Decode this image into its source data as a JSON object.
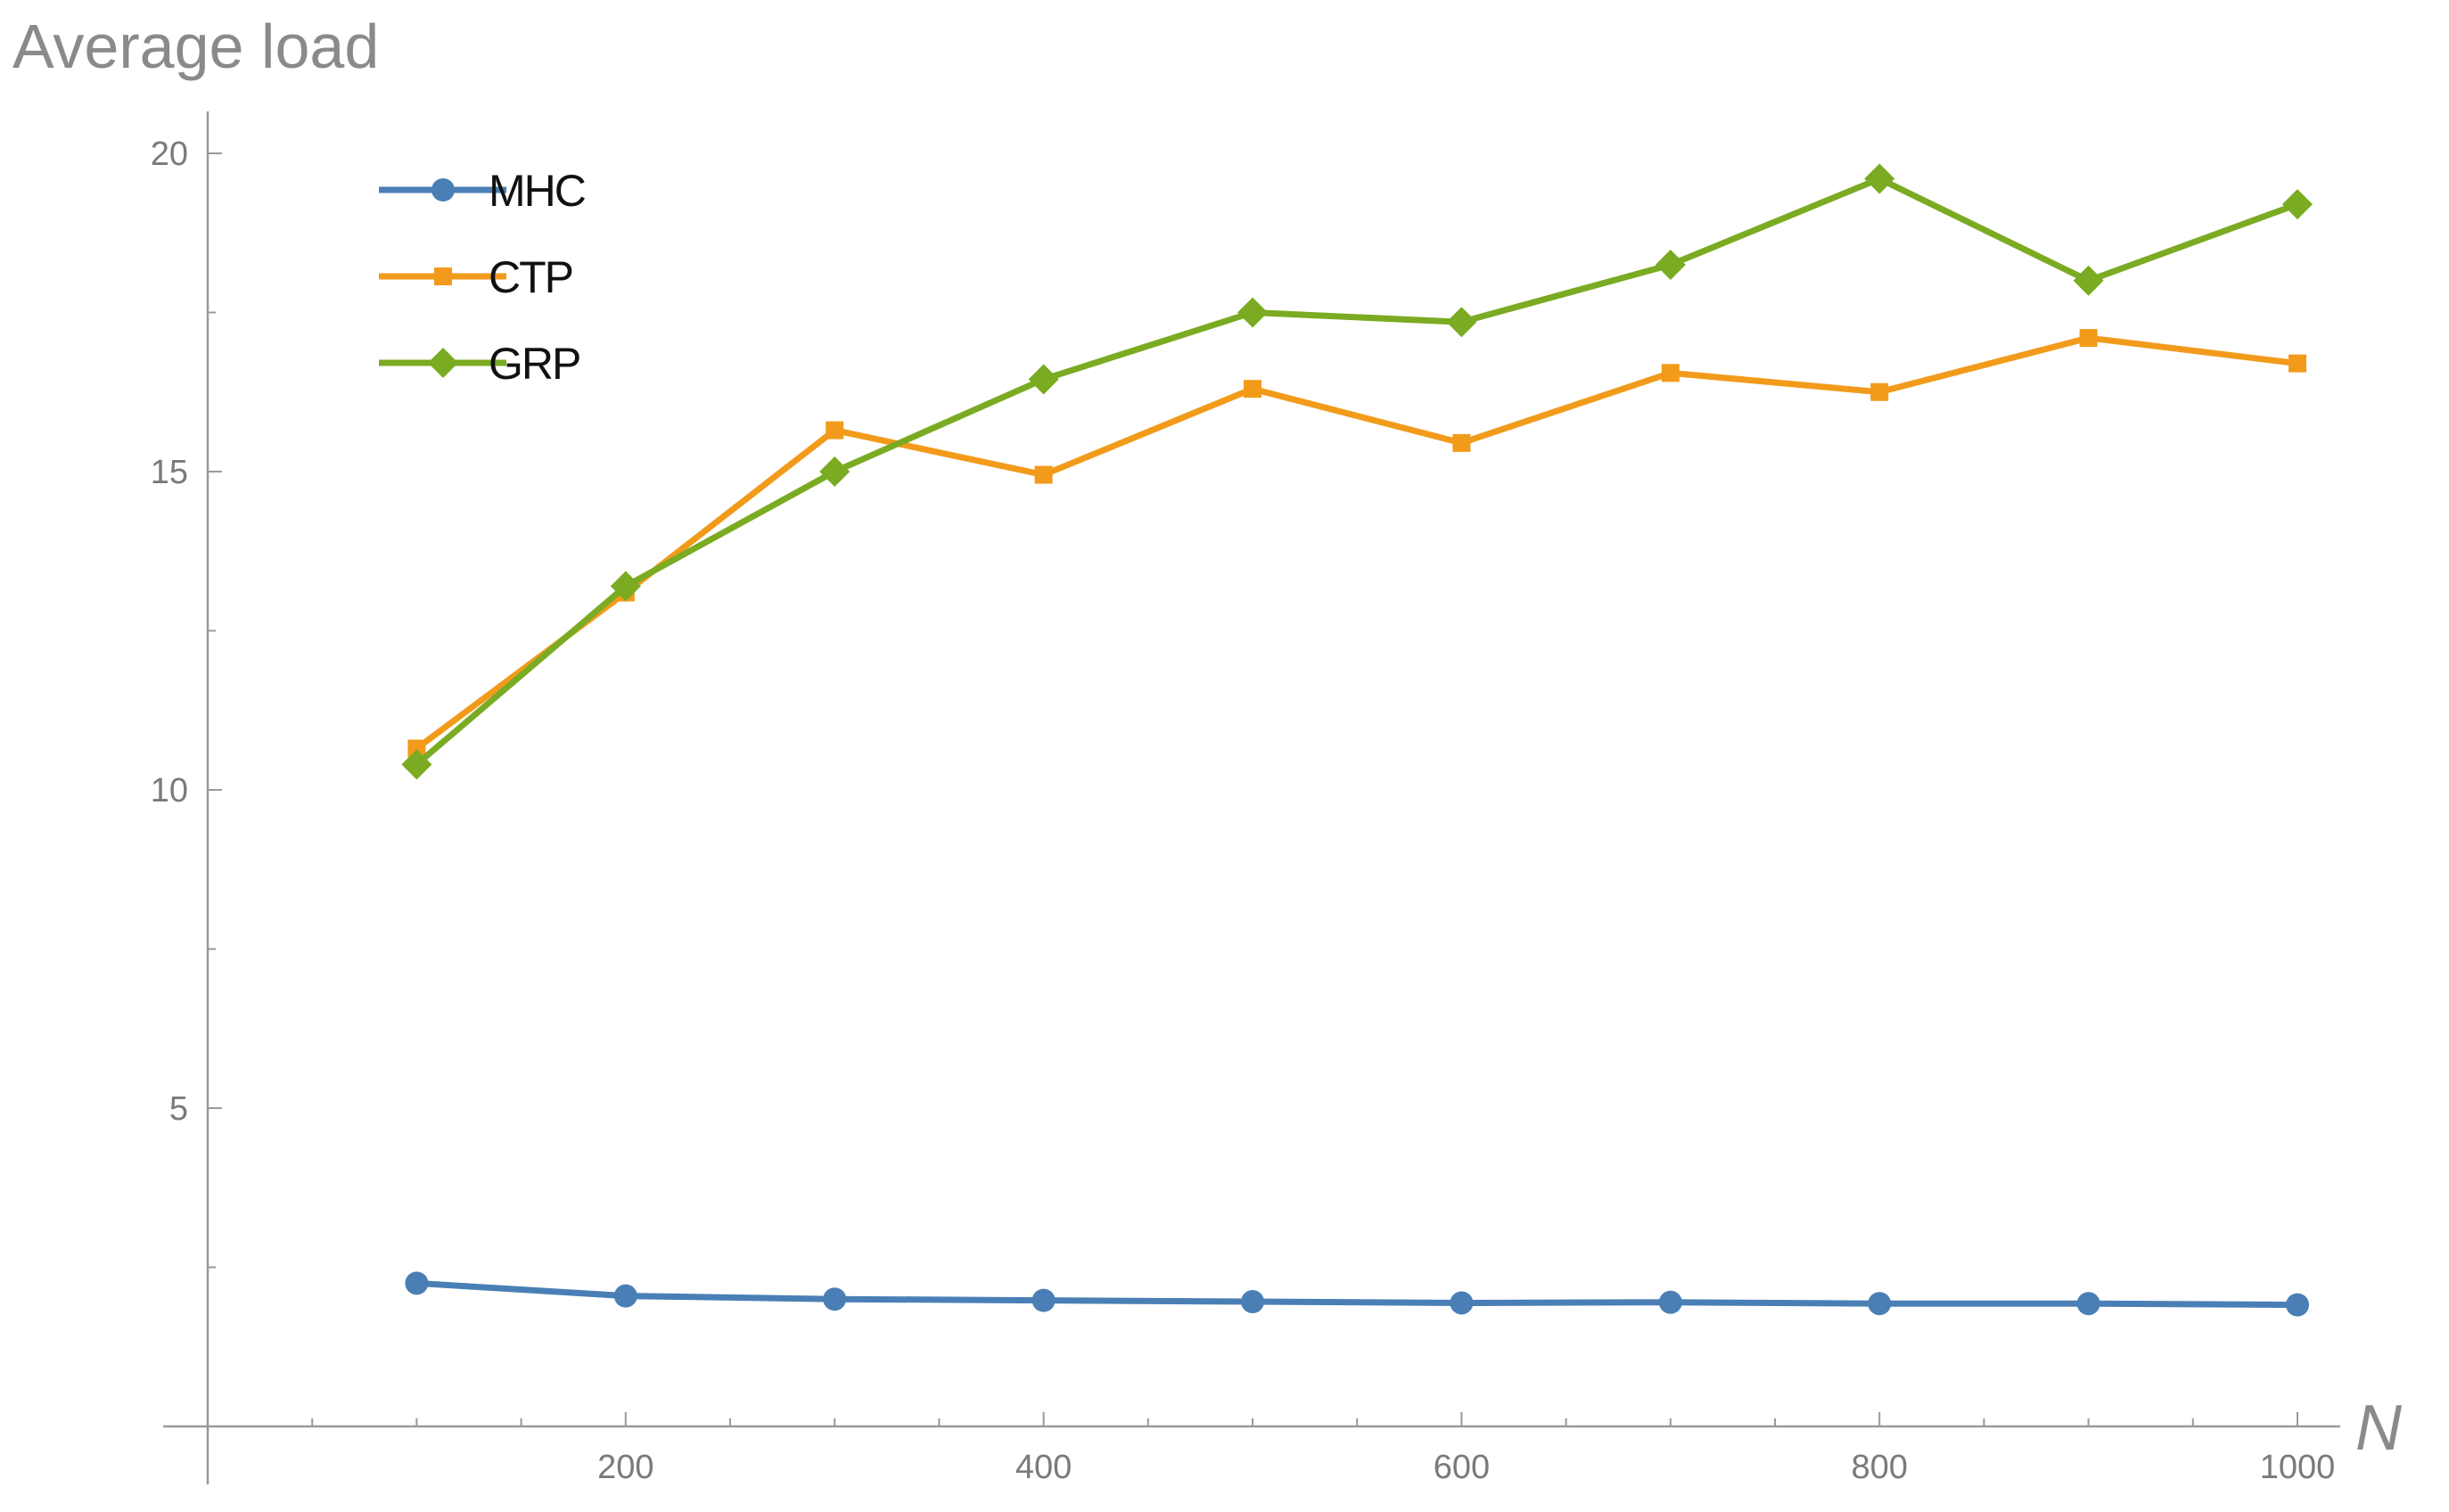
{
  "chart_data": {
    "type": "line",
    "title": "",
    "ylabel": "Average load",
    "xlabel": "N",
    "xlim": [
      0,
      1000
    ],
    "ylim": [
      0,
      20
    ],
    "x": [
      100,
      200,
      300,
      400,
      500,
      600,
      700,
      800,
      900,
      1000
    ],
    "x_ticks": [
      "200",
      "400",
      "600",
      "800",
      "1000"
    ],
    "x_tick_values": [
      200,
      400,
      600,
      800,
      1000
    ],
    "y_ticks": [
      "5",
      "10",
      "15",
      "20"
    ],
    "y_tick_values": [
      5,
      10,
      15,
      20
    ],
    "grid": false,
    "legend_position": "top-left",
    "series": [
      {
        "name": "MHC",
        "color": "#4a7fb5",
        "marker": "circle",
        "values": [
          2.25,
          2.05,
          2.0,
          1.98,
          1.96,
          1.94,
          1.95,
          1.93,
          1.93,
          1.91
        ]
      },
      {
        "name": "CTP",
        "color": "#f29b1b",
        "marker": "square",
        "values": [
          10.65,
          13.1,
          15.65,
          14.95,
          16.3,
          15.45,
          16.55,
          16.25,
          17.1,
          16.7
        ]
      },
      {
        "name": "GRP",
        "color": "#7aab22",
        "marker": "diamond",
        "values": [
          10.4,
          13.2,
          15.0,
          16.45,
          17.5,
          17.35,
          18.25,
          19.6,
          18.0,
          19.2
        ]
      }
    ]
  }
}
